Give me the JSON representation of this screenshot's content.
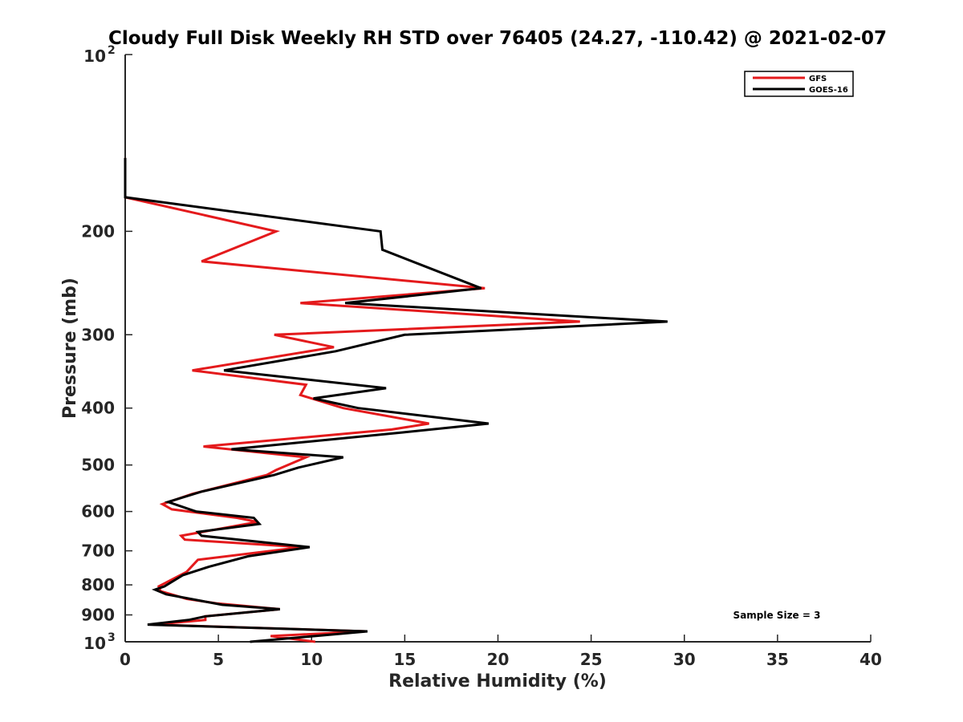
{
  "chart_data": {
    "type": "line",
    "title": "Cloudy Full Disk Weekly RH STD over 76405 (24.27, -110.42) @ 2021-02-07",
    "xlabel": "Relative Humidity (%)",
    "ylabel": "Pressure (mb)",
    "xlim": [
      0,
      40
    ],
    "ylim": [
      100,
      1000
    ],
    "y_scale": "log",
    "y_reversed": true,
    "x_ticks": [
      "0",
      "5",
      "10",
      "15",
      "20",
      "25",
      "30",
      "35",
      "40"
    ],
    "y_ticks": [
      {
        "value": 100,
        "base": "10",
        "exp": "2"
      },
      {
        "value": 200,
        "label": "200"
      },
      {
        "value": 300,
        "label": "300"
      },
      {
        "value": 400,
        "label": "400"
      },
      {
        "value": 500,
        "label": "500"
      },
      {
        "value": 600,
        "label": "600"
      },
      {
        "value": 700,
        "label": "700"
      },
      {
        "value": 800,
        "label": "800"
      },
      {
        "value": 900,
        "label": "900"
      },
      {
        "value": 1000,
        "base": "10",
        "exp": "3"
      }
    ],
    "legend_position": "top-right",
    "annotation": "Sample Size = 3",
    "grid": false,
    "series": [
      {
        "name": "GFS",
        "color": "#e41a1c",
        "points": [
          [
            0,
            150
          ],
          [
            0,
            175
          ],
          [
            8.1,
            200
          ],
          [
            4.1,
            225
          ],
          [
            19.3,
            250
          ],
          [
            9.4,
            265
          ],
          [
            24.4,
            285
          ],
          [
            8.0,
            300
          ],
          [
            11.2,
            315
          ],
          [
            3.6,
            345
          ],
          [
            9.7,
            365
          ],
          [
            9.4,
            380
          ],
          [
            11.7,
            400
          ],
          [
            16.3,
            425
          ],
          [
            14.3,
            435
          ],
          [
            4.2,
            465
          ],
          [
            9.7,
            485
          ],
          [
            8.1,
            510
          ],
          [
            7.6,
            520
          ],
          [
            3.6,
            560
          ],
          [
            2.0,
            583
          ],
          [
            2.5,
            595
          ],
          [
            6.0,
            615
          ],
          [
            7.1,
            625
          ],
          [
            3.0,
            660
          ],
          [
            3.2,
            670
          ],
          [
            9.5,
            690
          ],
          [
            3.9,
            725
          ],
          [
            3.3,
            760
          ],
          [
            1.8,
            805
          ],
          [
            1.9,
            820
          ],
          [
            3.3,
            845
          ],
          [
            4.9,
            860
          ],
          [
            8.3,
            880
          ],
          [
            4.3,
            905
          ],
          [
            4.3,
            918
          ],
          [
            1.5,
            935
          ],
          [
            12.9,
            960
          ],
          [
            7.8,
            978
          ],
          [
            10.2,
            1000
          ]
        ]
      },
      {
        "name": "GOES-16",
        "color": "#000000",
        "points": [
          [
            0,
            150
          ],
          [
            0,
            175
          ],
          [
            13.7,
            200
          ],
          [
            13.8,
            215
          ],
          [
            19.1,
            250
          ],
          [
            11.8,
            265
          ],
          [
            29.1,
            285
          ],
          [
            15.0,
            300
          ],
          [
            11.3,
            320
          ],
          [
            5.3,
            345
          ],
          [
            14.0,
            370
          ],
          [
            10.1,
            385
          ],
          [
            12.5,
            400
          ],
          [
            19.5,
            425
          ],
          [
            14.9,
            440
          ],
          [
            5.7,
            470
          ],
          [
            11.7,
            485
          ],
          [
            9.3,
            505
          ],
          [
            8.0,
            520
          ],
          [
            4.1,
            555
          ],
          [
            2.3,
            578
          ],
          [
            3.8,
            600
          ],
          [
            6.9,
            615
          ],
          [
            7.2,
            630
          ],
          [
            3.9,
            650
          ],
          [
            4.1,
            660
          ],
          [
            9.9,
            690
          ],
          [
            6.6,
            715
          ],
          [
            4.5,
            745
          ],
          [
            3.1,
            770
          ],
          [
            2.1,
            805
          ],
          [
            1.6,
            815
          ],
          [
            2.2,
            830
          ],
          [
            5.2,
            865
          ],
          [
            8.3,
            880
          ],
          [
            4.3,
            905
          ],
          [
            3.4,
            918
          ],
          [
            1.2,
            935
          ],
          [
            13.0,
            960
          ],
          [
            6.7,
            1000
          ]
        ]
      }
    ]
  }
}
